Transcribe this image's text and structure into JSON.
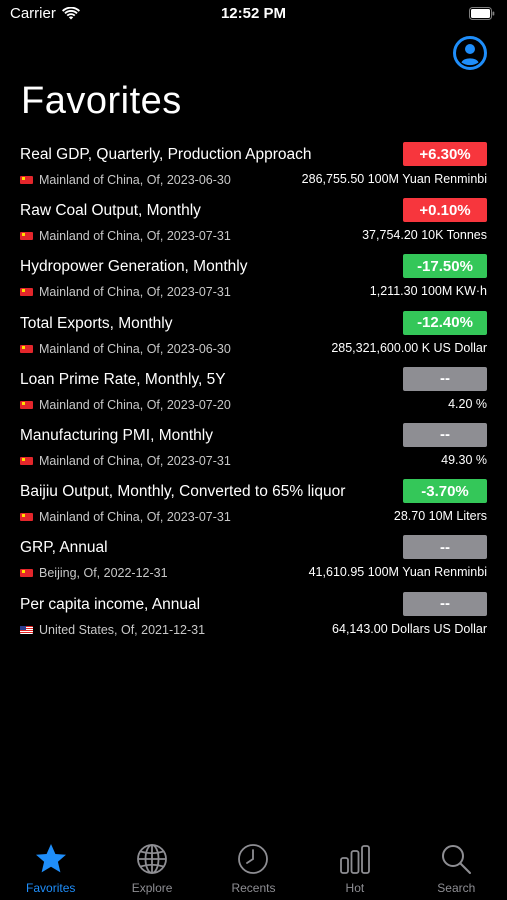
{
  "status_bar": {
    "carrier": "Carrier",
    "time": "12:52 PM"
  },
  "header": {
    "title": "Favorites",
    "profile_icon": "person-circle-icon"
  },
  "colors": {
    "up": "#f7363d",
    "down": "#34c759",
    "none": "#8e8e93",
    "accent": "#1f8efa"
  },
  "favorites": [
    {
      "title": "Real GDP, Quarterly, Production Approach",
      "region": "Mainland of China, Of, 2023-06-30",
      "flag": "cn",
      "change": "+6.30%",
      "trend": "up",
      "value": "286,755.50 100M Yuan Renminbi"
    },
    {
      "title": "Raw Coal Output, Monthly",
      "region": "Mainland of China, Of, 2023-07-31",
      "flag": "cn",
      "change": "+0.10%",
      "trend": "up",
      "value": "37,754.20 10K Tonnes"
    },
    {
      "title": "Hydropower Generation, Monthly",
      "region": "Mainland of China, Of, 2023-07-31",
      "flag": "cn",
      "change": "-17.50%",
      "trend": "down",
      "value": "1,211.30 100M KW·h"
    },
    {
      "title": "Total Exports, Monthly",
      "region": "Mainland of China, Of, 2023-06-30",
      "flag": "cn",
      "change": "-12.40%",
      "trend": "down",
      "value": "285,321,600.00 K US Dollar"
    },
    {
      "title": "Loan Prime Rate, Monthly, 5Y",
      "region": "Mainland of China, Of, 2023-07-20",
      "flag": "cn",
      "change": "--",
      "trend": "none",
      "value": "4.20 %"
    },
    {
      "title": "Manufacturing PMI, Monthly",
      "region": "Mainland of China, Of, 2023-07-31",
      "flag": "cn",
      "change": "--",
      "trend": "none",
      "value": "49.30 %"
    },
    {
      "title": "Baijiu Output, Monthly, Converted to 65% liquor",
      "region": "Mainland of China, Of, 2023-07-31",
      "flag": "cn",
      "change": "-3.70%",
      "trend": "down",
      "value": "28.70 10M Liters"
    },
    {
      "title": "GRP, Annual",
      "region": "Beijing, Of, 2022-12-31",
      "flag": "cn",
      "change": "--",
      "trend": "none",
      "value": "41,610.95 100M Yuan Renminbi"
    },
    {
      "title": "Per capita income, Annual",
      "region": "United States, Of, 2021-12-31",
      "flag": "us",
      "change": "--",
      "trend": "none",
      "value": "64,143.00 Dollars US Dollar"
    }
  ],
  "tabs": [
    {
      "label": "Favorites",
      "icon": "star-icon",
      "active": true
    },
    {
      "label": "Explore",
      "icon": "globe-icon",
      "active": false
    },
    {
      "label": "Recents",
      "icon": "clock-icon",
      "active": false
    },
    {
      "label": "Hot",
      "icon": "bar-chart-icon",
      "active": false
    },
    {
      "label": "Search",
      "icon": "magnifier-icon",
      "active": false
    }
  ]
}
